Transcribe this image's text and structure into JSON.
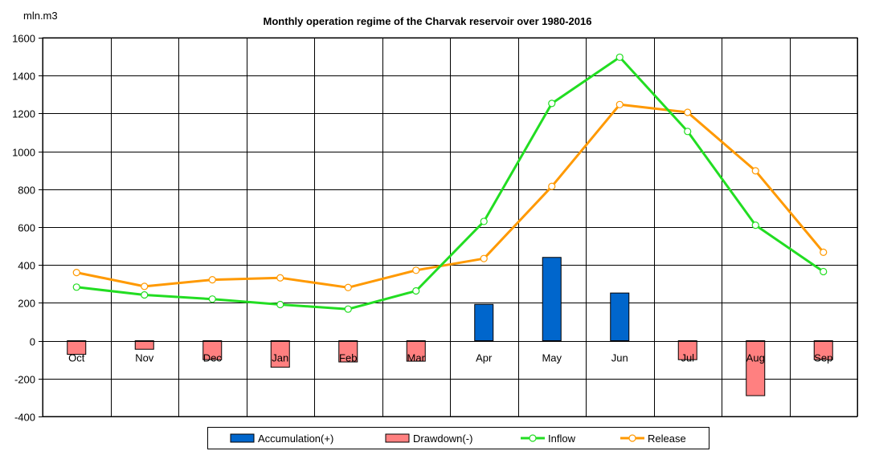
{
  "chart_data": {
    "type": "bar+line",
    "title": "Monthly operation regime of the Charvak reservoir over 1980-2016",
    "ylabel": "mln.m3",
    "xlabel": "",
    "ylim": [
      -400,
      1600
    ],
    "yticks": [
      1600,
      1400,
      1200,
      1000,
      800,
      600,
      400,
      200,
      0,
      -200,
      -400
    ],
    "grid": true,
    "legend_position": "bottom",
    "categories": [
      "Oct",
      "Nov",
      "Dec",
      "Jan",
      "Feb",
      "Mar",
      "Apr",
      "May",
      "Jun",
      "Jul",
      "Aug",
      "Sep"
    ],
    "series": [
      {
        "name": "Accumulation(+)",
        "kind": "bar",
        "color": "#0066cc",
        "values": [
          0,
          0,
          0,
          0,
          0,
          0,
          192,
          440,
          252,
          0,
          0,
          0
        ]
      },
      {
        "name": "Drawdown(-)",
        "kind": "bar",
        "color": "#ff8080",
        "values": [
          -72,
          -45,
          -100,
          -140,
          -112,
          -108,
          0,
          0,
          0,
          -100,
          -290,
          -100
        ]
      },
      {
        "name": "Inflow",
        "kind": "line",
        "color": "#22dd22",
        "values": [
          283,
          242,
          220,
          191,
          167,
          263,
          630,
          1253,
          1497,
          1105,
          610,
          365
        ]
      },
      {
        "name": "Release",
        "kind": "line",
        "color": "#ff9900",
        "values": [
          360,
          287,
          322,
          332,
          281,
          372,
          434,
          815,
          1247,
          1206,
          897,
          467
        ]
      }
    ]
  }
}
